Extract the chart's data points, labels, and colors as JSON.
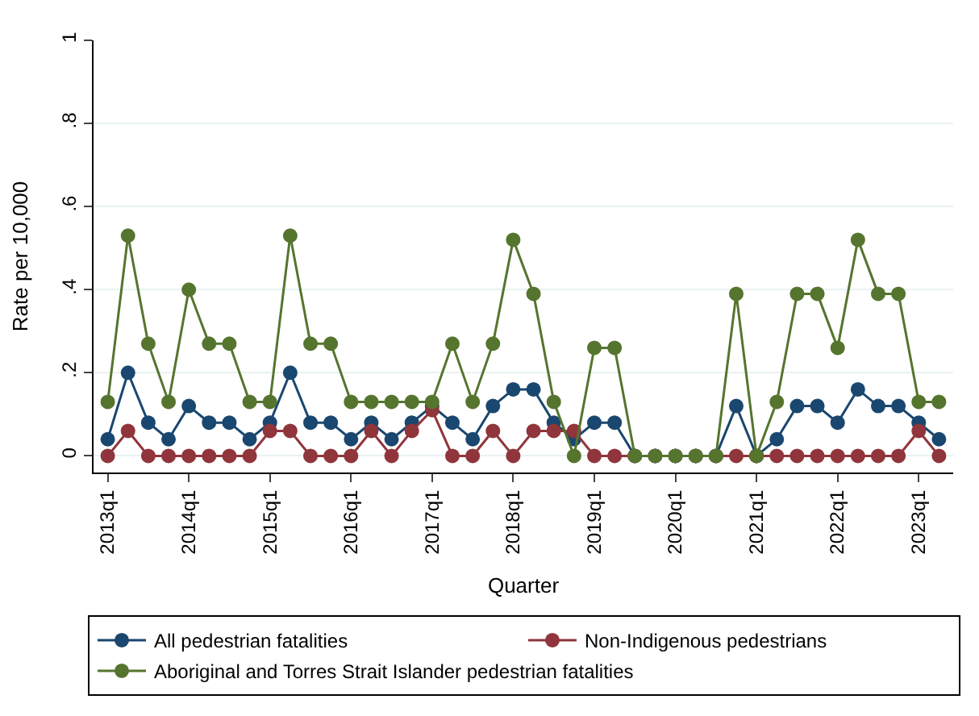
{
  "chart_data": {
    "type": "line",
    "xlabel": "Quarter",
    "ylabel": "Rate per 10,000",
    "categories": [
      "2013q1",
      null,
      null,
      null,
      "2014q1",
      null,
      null,
      null,
      "2015q1",
      null,
      null,
      null,
      "2016q1",
      null,
      null,
      null,
      "2017q1",
      null,
      null,
      null,
      "2018q1",
      null,
      null,
      null,
      "2019q1",
      null,
      null,
      null,
      "2020q1",
      null,
      null,
      null,
      "2021q1",
      null,
      null,
      null,
      "2022q1",
      null,
      null,
      null,
      "2023q1",
      null
    ],
    "series": [
      {
        "name": "All pedestrian fatalities",
        "color": "#1a476f",
        "values": [
          0.04,
          0.2,
          0.08,
          0.04,
          0.12,
          0.08,
          0.08,
          0.04,
          0.08,
          0.2,
          0.08,
          0.08,
          0.04,
          0.08,
          0.04,
          0.08,
          0.12,
          0.08,
          0.04,
          0.12,
          0.16,
          0.16,
          0.08,
          0.04,
          0.08,
          0.08,
          0,
          0,
          0,
          0,
          0,
          0.12,
          0,
          0.04,
          0.12,
          0.12,
          0.08,
          0.16,
          0.12,
          0.12,
          0.08,
          0.04
        ]
      },
      {
        "name": "Non-Indigenous pedestrians",
        "color": "#90353b",
        "values": [
          0,
          0.06,
          0,
          0,
          0,
          0,
          0,
          0,
          0.06,
          0.06,
          0,
          0,
          0,
          0.06,
          0,
          0.06,
          0.11,
          0,
          0,
          0.06,
          0,
          0.06,
          0.06,
          0.06,
          0,
          0,
          0,
          0,
          0,
          0,
          0,
          0,
          0,
          0,
          0,
          0,
          0,
          0,
          0,
          0,
          0.06,
          0
        ]
      },
      {
        "name": "Aboriginal and Torres Strait Islander pedestrian fatalities",
        "color": "#55752f",
        "values": [
          0.13,
          0.53,
          0.27,
          0.13,
          0.4,
          0.27,
          0.27,
          0.13,
          0.13,
          0.53,
          0.27,
          0.27,
          0.13,
          0.13,
          0.13,
          0.13,
          0.13,
          0.27,
          0.13,
          0.27,
          0.52,
          0.39,
          0.13,
          0,
          0.26,
          0.26,
          0,
          0,
          0,
          0,
          0,
          0.39,
          0,
          0.13,
          0.39,
          0.39,
          0.26,
          0.52,
          0.39,
          0.39,
          0.13,
          0.13
        ]
      }
    ],
    "ylim": [
      -0.04,
      1
    ],
    "yticks": [
      0,
      {
        "value": 0.2,
        "label": ".2"
      },
      {
        "value": 0.4,
        "label": ".4"
      },
      {
        "value": 0.6,
        "label": ".6"
      },
      {
        "value": 0.8,
        "label": ".8"
      },
      1
    ],
    "grid": "y",
    "legend": "bottom",
    "marker": "circle",
    "line_style": "solid"
  }
}
